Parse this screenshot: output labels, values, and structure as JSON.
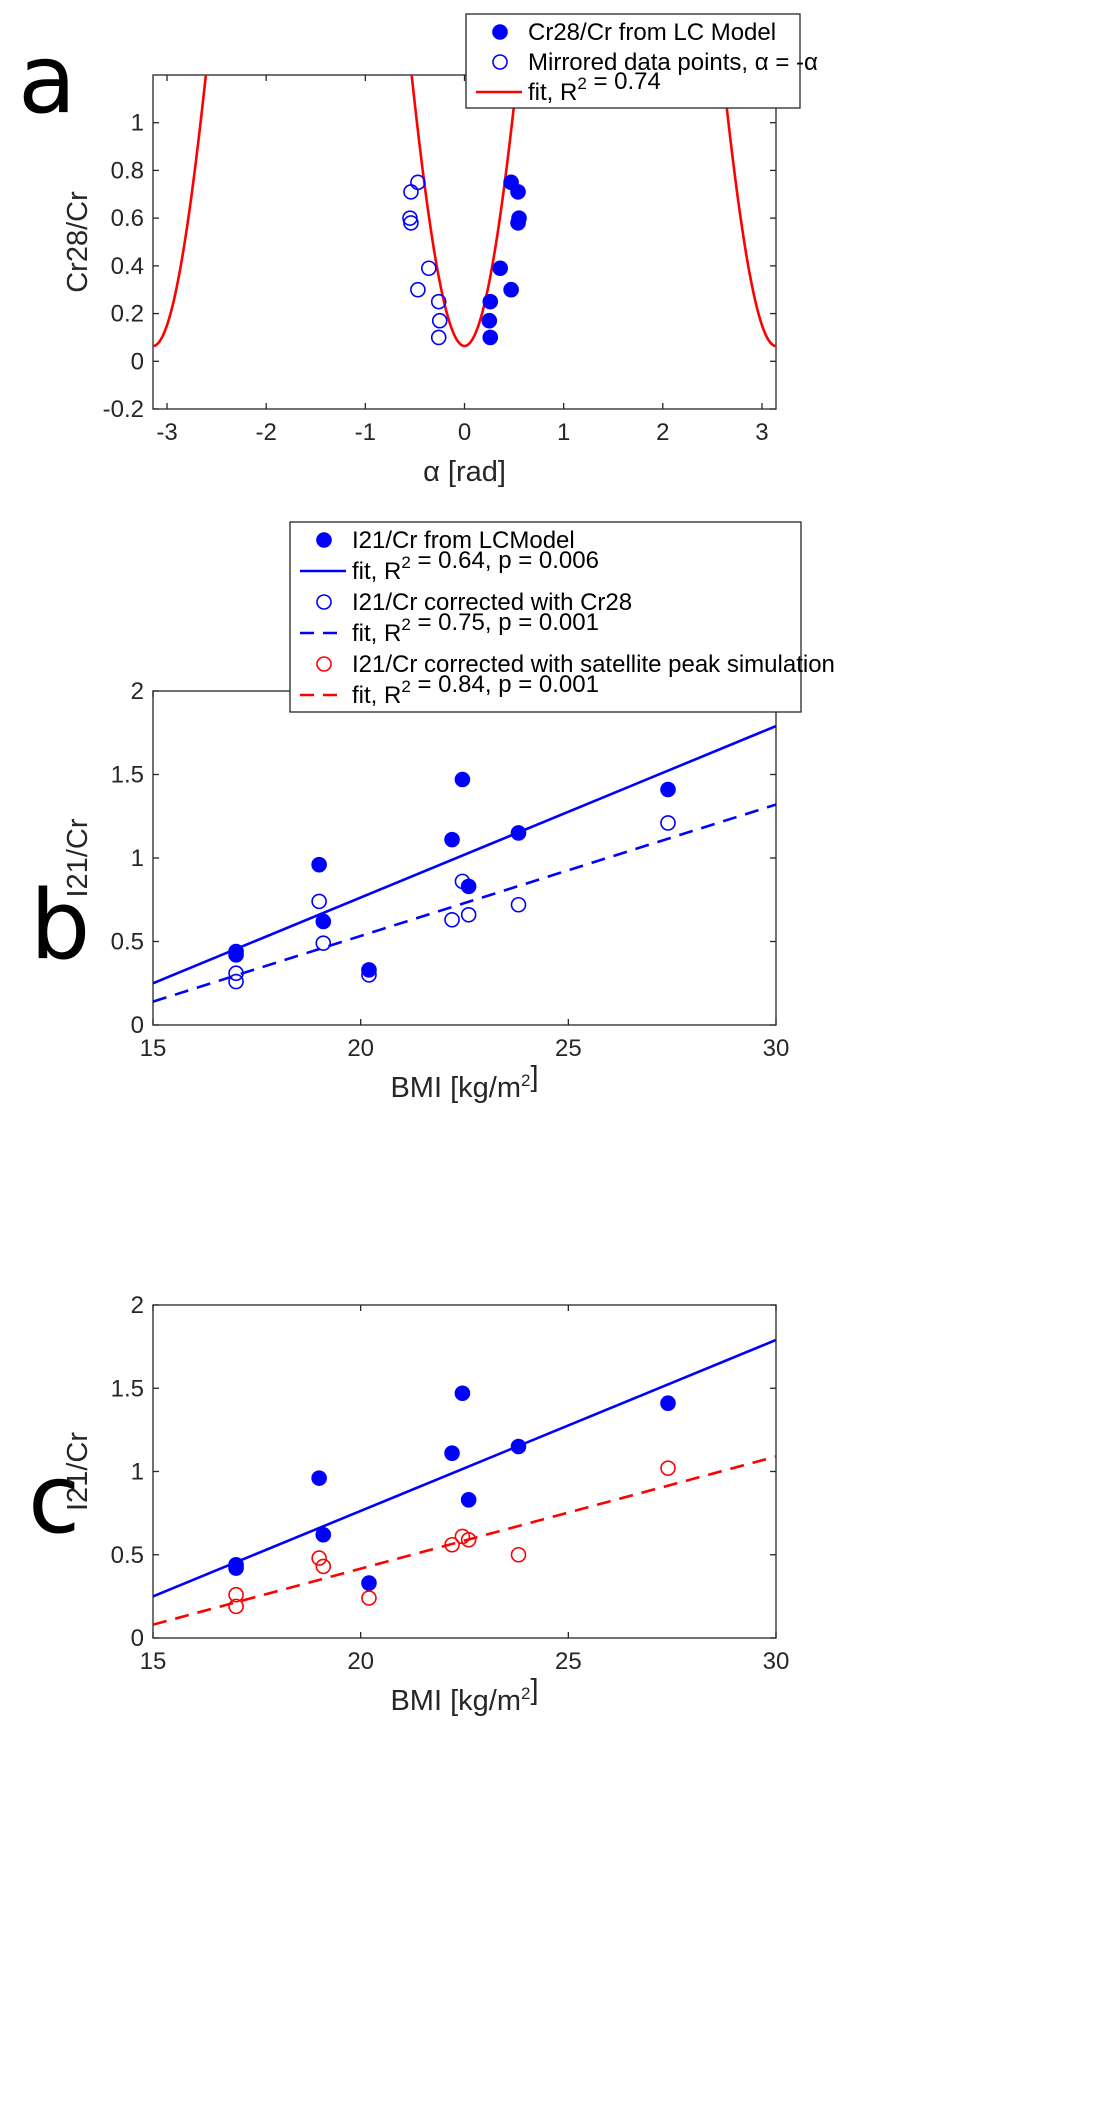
{
  "colors": {
    "blue": "#0000ff",
    "red": "#ff0000",
    "axis": "#262626"
  },
  "chart_data": [
    {
      "type": "scatter",
      "panel": "a",
      "xlabel": "α [rad]",
      "ylabel": "Cr28/Cr",
      "xlim": [
        -3.14159,
        3.14159
      ],
      "ylim": [
        -0.2,
        1.2
      ],
      "xticks": [
        -3,
        -2,
        -1,
        0,
        1,
        2,
        3
      ],
      "xtick_labels": [
        "-3",
        "-2",
        "-1",
        "0",
        "1",
        "2",
        "3"
      ],
      "yticks": [
        -0.2,
        0,
        0.2,
        0.4,
        0.6,
        0.8,
        1
      ],
      "ytick_labels": [
        "-0.2",
        "0",
        "0.2",
        "0.4",
        "0.6",
        "0.8",
        "1"
      ],
      "legend_position": "top-right",
      "series": [
        {
          "name": "Cr28/Cr from LC Model",
          "label": "Cr28/Cr from LC Model",
          "kind": "filled",
          "color": "blue",
          "x": [
            0.47,
            0.54,
            0.55,
            0.54,
            0.36,
            0.47,
            0.26,
            0.25,
            0.26
          ],
          "y": [
            0.75,
            0.71,
            0.6,
            0.58,
            0.39,
            0.3,
            0.25,
            0.17,
            0.1
          ]
        },
        {
          "name": "Mirrored data points",
          "label": "Mirrored data points, α = -α",
          "kind": "open",
          "color": "blue",
          "x": [
            -0.47,
            -0.54,
            -0.55,
            -0.54,
            -0.36,
            -0.47,
            -0.26,
            -0.25,
            -0.26
          ],
          "y": [
            0.75,
            0.71,
            0.6,
            0.58,
            0.39,
            0.3,
            0.25,
            0.17,
            0.1
          ]
        },
        {
          "name": "fit",
          "label": "fit, R² = 0.74",
          "kind": "curve",
          "color": "red",
          "model": "y = 0.064 + 2.2*(1 - cos(2*alpha))",
          "A": 2.2,
          "B": 0.064
        }
      ]
    },
    {
      "type": "scatter",
      "panel": "b",
      "xlabel": "BMI [kg/m²]",
      "ylabel": "I21/Cr",
      "xlim": [
        15,
        30
      ],
      "ylim": [
        0,
        2
      ],
      "xticks": [
        15,
        20,
        25,
        30
      ],
      "xtick_labels": [
        "15",
        "20",
        "25",
        "30"
      ],
      "yticks": [
        0,
        0.5,
        1,
        1.5,
        2
      ],
      "ytick_labels": [
        "0",
        "0.5",
        "1",
        "1.5",
        "2"
      ],
      "legend_position": "top-right",
      "series": [
        {
          "name": "I21/Cr from LCModel",
          "label": "I21/Cr from LCModel",
          "kind": "filled",
          "color": "blue",
          "x": [
            17.0,
            17.0,
            19.0,
            19.1,
            20.2,
            22.2,
            22.45,
            22.6,
            23.8,
            27.4
          ],
          "y": [
            0.44,
            0.42,
            0.96,
            0.62,
            0.33,
            1.11,
            1.47,
            0.83,
            1.15,
            1.41
          ]
        },
        {
          "name": "fit I21/Cr",
          "label": "fit, R² = 0.64, p = 0.006",
          "kind": "line",
          "dash": false,
          "color": "blue",
          "x": [
            15,
            30
          ],
          "y": [
            0.25,
            1.79
          ]
        },
        {
          "name": "I21/Cr corrected with Cr28",
          "label": "I21/Cr corrected with Cr28",
          "kind": "open",
          "color": "blue",
          "x": [
            17.0,
            17.0,
            19.0,
            19.1,
            20.2,
            22.2,
            22.45,
            22.6,
            23.8,
            27.4
          ],
          "y": [
            0.31,
            0.26,
            0.74,
            0.49,
            0.3,
            0.63,
            0.86,
            0.66,
            0.72,
            1.21
          ]
        },
        {
          "name": "fit corrected Cr28",
          "label": "fit, R² = 0.75, p = 0.001",
          "kind": "line",
          "dash": true,
          "color": "blue",
          "x": [
            15,
            30
          ],
          "y": [
            0.14,
            1.32
          ]
        },
        {
          "name": "I21/Cr corrected with satellite peak simulation",
          "label": "I21/Cr corrected with satellite peak simulation",
          "kind": "legend-only",
          "marker": "open",
          "color": "red"
        },
        {
          "name": "fit satellite",
          "label": "fit, R² = 0.84, p = 0.001",
          "kind": "legend-only",
          "marker": "dashed-line",
          "color": "red"
        }
      ]
    },
    {
      "type": "scatter",
      "panel": "c",
      "xlabel": "BMI [kg/m²]",
      "ylabel": "I21/Cr",
      "xlim": [
        15,
        30
      ],
      "ylim": [
        0,
        2
      ],
      "xticks": [
        15,
        20,
        25,
        30
      ],
      "xtick_labels": [
        "15",
        "20",
        "25",
        "30"
      ],
      "yticks": [
        0,
        0.5,
        1,
        1.5,
        2
      ],
      "ytick_labels": [
        "0",
        "0.5",
        "1",
        "1.5",
        "2"
      ],
      "series": [
        {
          "name": "I21/Cr from LCModel",
          "kind": "filled",
          "color": "blue",
          "x": [
            17.0,
            17.0,
            19.0,
            19.1,
            20.2,
            22.2,
            22.45,
            22.6,
            23.8,
            27.4
          ],
          "y": [
            0.44,
            0.42,
            0.96,
            0.62,
            0.33,
            1.11,
            1.47,
            0.83,
            1.15,
            1.41
          ]
        },
        {
          "name": "fit I21/Cr",
          "kind": "line",
          "dash": false,
          "color": "blue",
          "x": [
            15,
            30
          ],
          "y": [
            0.25,
            1.79
          ]
        },
        {
          "name": "I21/Cr corrected with satellite peak simulation",
          "kind": "open",
          "color": "red",
          "x": [
            17.0,
            17.0,
            19.0,
            19.1,
            20.2,
            22.2,
            22.45,
            22.6,
            23.8,
            27.4
          ],
          "y": [
            0.26,
            0.19,
            0.48,
            0.43,
            0.24,
            0.56,
            0.61,
            0.59,
            0.5,
            1.02
          ]
        },
        {
          "name": "fit satellite",
          "kind": "line",
          "dash": true,
          "color": "red",
          "x": [
            15,
            30
          ],
          "y": [
            0.08,
            1.09
          ]
        }
      ]
    }
  ]
}
